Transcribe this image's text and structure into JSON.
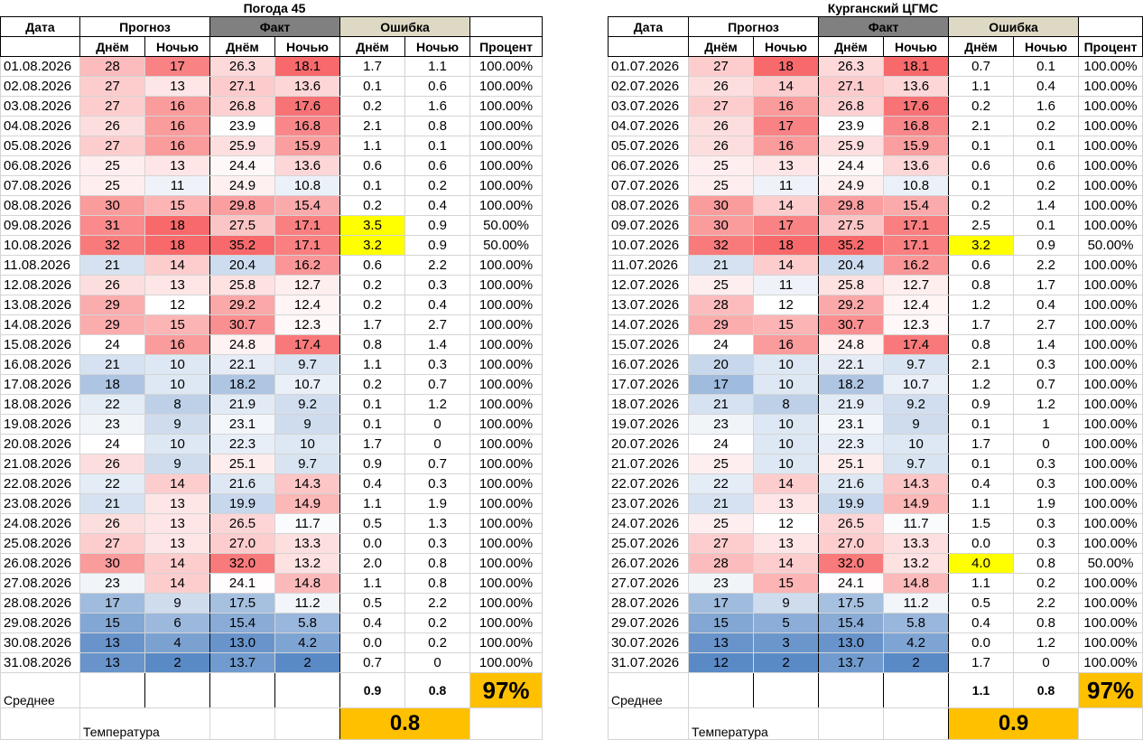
{
  "colors": {
    "fakt_header": "#808080",
    "error_header": "#ddd9c4",
    "highlight": "#ffff00",
    "summary": "#ffc000",
    "hot": "#f8696b",
    "cold": "#5a8ac6"
  },
  "headers": {
    "date": "Дата",
    "forecast": "Прогноз",
    "fact": "Факт",
    "error": "Ошибка",
    "day": "Днём",
    "night": "Ночью",
    "percent": "Процент"
  },
  "left": {
    "title": "Погода 45",
    "rows": [
      [
        "01.08.2026",
        "28",
        "17",
        "26.3",
        "18.1",
        "1.7",
        "1.1",
        "100.00%"
      ],
      [
        "02.08.2026",
        "27",
        "13",
        "27.1",
        "13.6",
        "0.1",
        "0.6",
        "100.00%"
      ],
      [
        "03.08.2026",
        "27",
        "16",
        "26.8",
        "17.6",
        "0.2",
        "1.6",
        "100.00%"
      ],
      [
        "04.08.2026",
        "26",
        "16",
        "23.9",
        "16.8",
        "2.1",
        "0.8",
        "100.00%"
      ],
      [
        "05.08.2026",
        "27",
        "16",
        "25.9",
        "15.9",
        "1.1",
        "0.1",
        "100.00%"
      ],
      [
        "06.08.2026",
        "25",
        "13",
        "24.4",
        "13.6",
        "0.6",
        "0.6",
        "100.00%"
      ],
      [
        "07.08.2026",
        "25",
        "11",
        "24.9",
        "10.8",
        "0.1",
        "0.2",
        "100.00%"
      ],
      [
        "08.08.2026",
        "30",
        "15",
        "29.8",
        "15.4",
        "0.2",
        "0.4",
        "100.00%"
      ],
      [
        "09.08.2026",
        "31",
        "18",
        "27.5",
        "17.1",
        "3.5",
        "0.9",
        "50.00%"
      ],
      [
        "10.08.2026",
        "32",
        "18",
        "35.2",
        "17.1",
        "3.2",
        "0.9",
        "50.00%"
      ],
      [
        "11.08.2026",
        "21",
        "14",
        "20.4",
        "16.2",
        "0.6",
        "2.2",
        "100.00%"
      ],
      [
        "12.08.2026",
        "26",
        "13",
        "25.8",
        "12.7",
        "0.2",
        "0.3",
        "100.00%"
      ],
      [
        "13.08.2026",
        "29",
        "12",
        "29.2",
        "12.4",
        "0.2",
        "0.4",
        "100.00%"
      ],
      [
        "14.08.2026",
        "29",
        "15",
        "30.7",
        "12.3",
        "1.7",
        "2.7",
        "100.00%"
      ],
      [
        "15.08.2026",
        "24",
        "16",
        "24.8",
        "17.4",
        "0.8",
        "1.4",
        "100.00%"
      ],
      [
        "16.08.2026",
        "21",
        "10",
        "22.1",
        "9.7",
        "1.1",
        "0.3",
        "100.00%"
      ],
      [
        "17.08.2026",
        "18",
        "10",
        "18.2",
        "10.7",
        "0.2",
        "0.7",
        "100.00%"
      ],
      [
        "18.08.2026",
        "22",
        "8",
        "21.9",
        "9.2",
        "0.1",
        "1.2",
        "100.00%"
      ],
      [
        "19.08.2026",
        "23",
        "9",
        "23.1",
        "9",
        "0.1",
        "0",
        "100.00%"
      ],
      [
        "20.08.2026",
        "24",
        "10",
        "22.3",
        "10",
        "1.7",
        "0",
        "100.00%"
      ],
      [
        "21.08.2026",
        "26",
        "9",
        "25.1",
        "9.7",
        "0.9",
        "0.7",
        "100.00%"
      ],
      [
        "22.08.2026",
        "22",
        "14",
        "21.6",
        "14.3",
        "0.4",
        "0.3",
        "100.00%"
      ],
      [
        "23.08.2026",
        "21",
        "13",
        "19.9",
        "14.9",
        "1.1",
        "1.9",
        "100.00%"
      ],
      [
        "24.08.2026",
        "26",
        "13",
        "26.5",
        "11.7",
        "0.5",
        "1.3",
        "100.00%"
      ],
      [
        "25.08.2026",
        "27",
        "13",
        "27.0",
        "13.3",
        "0.0",
        "0.3",
        "100.00%"
      ],
      [
        "26.08.2026",
        "30",
        "14",
        "32.0",
        "13.2",
        "2.0",
        "0.8",
        "100.00%"
      ],
      [
        "27.08.2026",
        "23",
        "14",
        "24.1",
        "14.8",
        "1.1",
        "0.8",
        "100.00%"
      ],
      [
        "28.08.2026",
        "17",
        "9",
        "17.5",
        "11.2",
        "0.5",
        "2.2",
        "100.00%"
      ],
      [
        "29.08.2026",
        "15",
        "6",
        "15.4",
        "5.8",
        "0.4",
        "0.2",
        "100.00%"
      ],
      [
        "30.08.2026",
        "13",
        "4",
        "13.0",
        "4.2",
        "0.0",
        "0.2",
        "100.00%"
      ],
      [
        "31.08.2026",
        "13",
        "2",
        "13.7",
        "2",
        "0.7",
        "0",
        "100.00%"
      ]
    ],
    "highlight": [
      [
        8,
        5
      ],
      [
        9,
        5
      ]
    ],
    "avg_label": "Среднее",
    "avg_day": "0.9",
    "avg_night": "0.8",
    "avg_pct": "97%",
    "temp_label": "Температура",
    "temp_value": "0.8"
  },
  "right": {
    "title": "Курганский ЦГМС",
    "rows": [
      [
        "01.07.2026",
        "27",
        "18",
        "26.3",
        "18.1",
        "0.7",
        "0.1",
        "100.00%"
      ],
      [
        "02.07.2026",
        "26",
        "14",
        "27.1",
        "13.6",
        "1.1",
        "0.4",
        "100.00%"
      ],
      [
        "03.07.2026",
        "27",
        "16",
        "26.8",
        "17.6",
        "0.2",
        "1.6",
        "100.00%"
      ],
      [
        "04.07.2026",
        "26",
        "17",
        "23.9",
        "16.8",
        "2.1",
        "0.2",
        "100.00%"
      ],
      [
        "05.07.2026",
        "26",
        "16",
        "25.9",
        "15.9",
        "0.1",
        "0.1",
        "100.00%"
      ],
      [
        "06.07.2026",
        "25",
        "13",
        "24.4",
        "13.6",
        "0.6",
        "0.6",
        "100.00%"
      ],
      [
        "07.07.2026",
        "25",
        "11",
        "24.9",
        "10.8",
        "0.1",
        "0.2",
        "100.00%"
      ],
      [
        "08.07.2026",
        "30",
        "14",
        "29.8",
        "15.4",
        "0.2",
        "1.4",
        "100.00%"
      ],
      [
        "09.07.2026",
        "30",
        "17",
        "27.5",
        "17.1",
        "2.5",
        "0.1",
        "100.00%"
      ],
      [
        "10.07.2026",
        "32",
        "18",
        "35.2",
        "17.1",
        "3.2",
        "0.9",
        "50.00%"
      ],
      [
        "11.07.2026",
        "21",
        "14",
        "20.4",
        "16.2",
        "0.6",
        "2.2",
        "100.00%"
      ],
      [
        "12.07.2026",
        "25",
        "11",
        "25.8",
        "12.7",
        "0.8",
        "1.7",
        "100.00%"
      ],
      [
        "13.07.2026",
        "28",
        "12",
        "29.2",
        "12.4",
        "1.2",
        "0.4",
        "100.00%"
      ],
      [
        "14.07.2026",
        "29",
        "15",
        "30.7",
        "12.3",
        "1.7",
        "2.7",
        "100.00%"
      ],
      [
        "15.07.2026",
        "24",
        "16",
        "24.8",
        "17.4",
        "0.8",
        "1.4",
        "100.00%"
      ],
      [
        "16.07.2026",
        "20",
        "10",
        "22.1",
        "9.7",
        "2.1",
        "0.3",
        "100.00%"
      ],
      [
        "17.07.2026",
        "17",
        "10",
        "18.2",
        "10.7",
        "1.2",
        "0.7",
        "100.00%"
      ],
      [
        "18.07.2026",
        "21",
        "8",
        "21.9",
        "9.2",
        "0.9",
        "1.2",
        "100.00%"
      ],
      [
        "19.07.2026",
        "23",
        "10",
        "23.1",
        "9",
        "0.1",
        "1",
        "100.00%"
      ],
      [
        "20.07.2026",
        "24",
        "10",
        "22.3",
        "10",
        "1.7",
        "0",
        "100.00%"
      ],
      [
        "21.07.2026",
        "25",
        "10",
        "25.1",
        "9.7",
        "0.1",
        "0.3",
        "100.00%"
      ],
      [
        "22.07.2026",
        "22",
        "14",
        "21.6",
        "14.3",
        "0.4",
        "0.3",
        "100.00%"
      ],
      [
        "23.07.2026",
        "21",
        "13",
        "19.9",
        "14.9",
        "1.1",
        "1.9",
        "100.00%"
      ],
      [
        "24.07.2026",
        "25",
        "12",
        "26.5",
        "11.7",
        "1.5",
        "0.3",
        "100.00%"
      ],
      [
        "25.07.2026",
        "27",
        "13",
        "27.0",
        "13.3",
        "0.0",
        "0.3",
        "100.00%"
      ],
      [
        "26.07.2026",
        "28",
        "14",
        "32.0",
        "13.2",
        "4.0",
        "0.8",
        "50.00%"
      ],
      [
        "27.07.2026",
        "23",
        "15",
        "24.1",
        "14.8",
        "1.1",
        "0.2",
        "100.00%"
      ],
      [
        "28.07.2026",
        "17",
        "9",
        "17.5",
        "11.2",
        "0.5",
        "2.2",
        "100.00%"
      ],
      [
        "29.07.2026",
        "15",
        "5",
        "15.4",
        "5.8",
        "0.4",
        "0.8",
        "100.00%"
      ],
      [
        "30.07.2026",
        "13",
        "3",
        "13.0",
        "4.2",
        "0.0",
        "1.2",
        "100.00%"
      ],
      [
        "31.07.2026",
        "12",
        "2",
        "13.7",
        "2",
        "1.7",
        "0",
        "100.00%"
      ]
    ],
    "highlight": [
      [
        9,
        5
      ],
      [
        25,
        5
      ]
    ],
    "avg_label": "Среднее",
    "avg_day": "1.1",
    "avg_night": "0.8",
    "avg_pct": "97%",
    "temp_label": "Температура",
    "temp_value": "0.9"
  }
}
